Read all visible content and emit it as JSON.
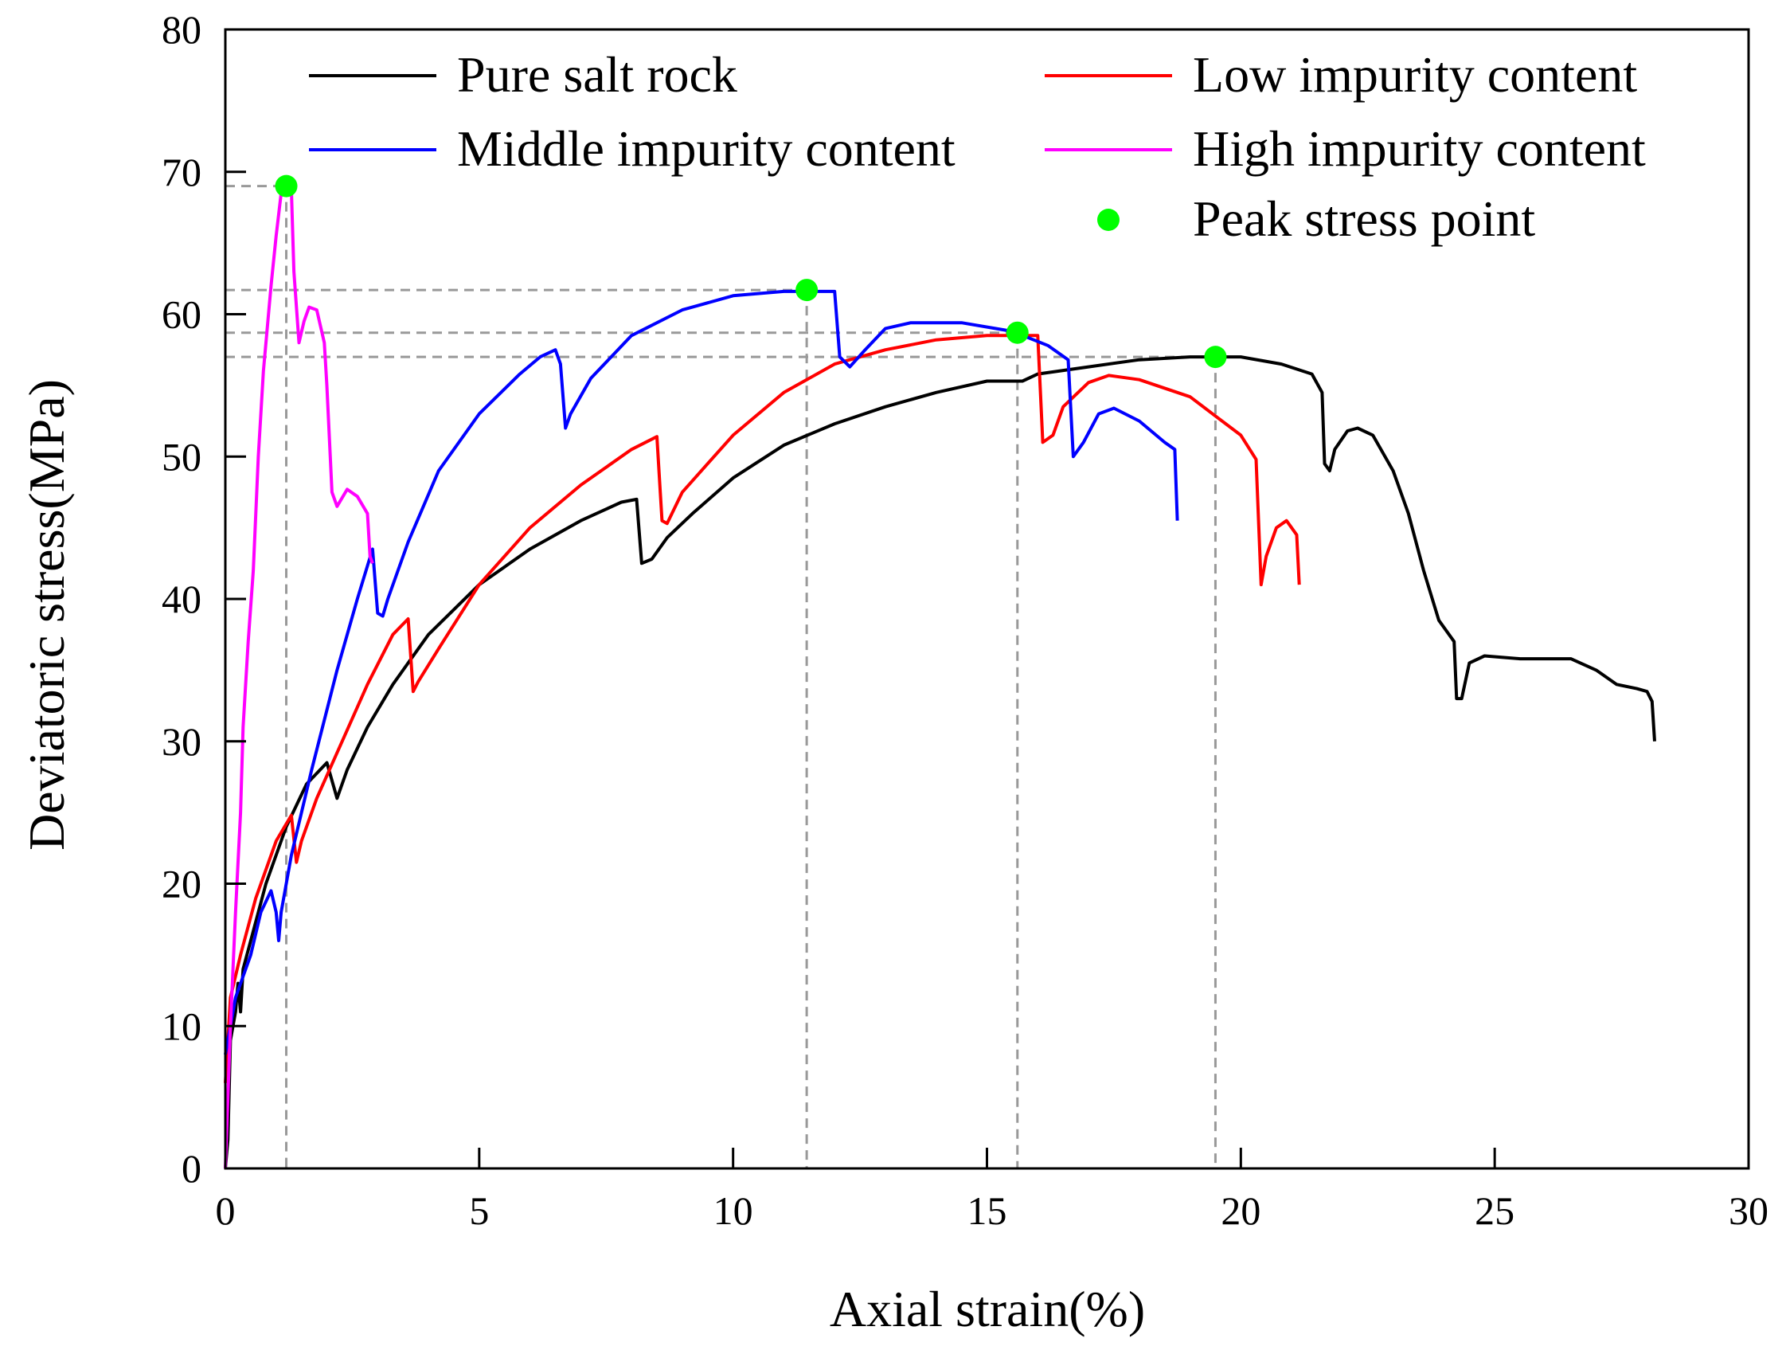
{
  "chart_data": {
    "type": "line",
    "title": "",
    "xlabel": "Axial strain(%)",
    "ylabel": "Deviatoric stress(MPa)",
    "xlim": [
      0,
      30
    ],
    "ylim": [
      0,
      80
    ],
    "xticks": [
      0,
      5,
      10,
      15,
      20,
      25,
      30
    ],
    "yticks": [
      0,
      10,
      20,
      30,
      40,
      50,
      60,
      70,
      80
    ],
    "grid": false,
    "legend_position": "top",
    "series": [
      {
        "name": "Pure salt rock",
        "color": "#000000",
        "points": [
          [
            0,
            0
          ],
          [
            0.05,
            2
          ],
          [
            0.1,
            9
          ],
          [
            0.2,
            11
          ],
          [
            0.25,
            13
          ],
          [
            0.3,
            11
          ],
          [
            0.35,
            14
          ],
          [
            0.5,
            16
          ],
          [
            0.8,
            20
          ],
          [
            1.2,
            24
          ],
          [
            1.6,
            27
          ],
          [
            2.0,
            28.5
          ],
          [
            2.2,
            26
          ],
          [
            2.4,
            28
          ],
          [
            2.8,
            31
          ],
          [
            3.3,
            34
          ],
          [
            4.0,
            37.5
          ],
          [
            5.0,
            41
          ],
          [
            6.0,
            43.5
          ],
          [
            7.0,
            45.5
          ],
          [
            7.8,
            46.8
          ],
          [
            8.1,
            47
          ],
          [
            8.2,
            42.5
          ],
          [
            8.4,
            42.8
          ],
          [
            8.7,
            44.3
          ],
          [
            9.2,
            46
          ],
          [
            10,
            48.5
          ],
          [
            11,
            50.8
          ],
          [
            12,
            52.3
          ],
          [
            13,
            53.5
          ],
          [
            14,
            54.5
          ],
          [
            15,
            55.3
          ],
          [
            15.7,
            55.3
          ],
          [
            16,
            55.8
          ],
          [
            17,
            56.3
          ],
          [
            18,
            56.8
          ],
          [
            19,
            57
          ],
          [
            20,
            57
          ],
          [
            20.8,
            56.5
          ],
          [
            21.4,
            55.8
          ],
          [
            21.6,
            54.5
          ],
          [
            21.65,
            49.5
          ],
          [
            21.75,
            49
          ],
          [
            21.85,
            50.5
          ],
          [
            22.1,
            51.8
          ],
          [
            22.3,
            52
          ],
          [
            22.6,
            51.5
          ],
          [
            23,
            49
          ],
          [
            23.3,
            46
          ],
          [
            23.6,
            42
          ],
          [
            23.9,
            38.5
          ],
          [
            24.2,
            37
          ],
          [
            24.25,
            33
          ],
          [
            24.35,
            33
          ],
          [
            24.5,
            35.5
          ],
          [
            24.8,
            36
          ],
          [
            25.5,
            35.8
          ],
          [
            26.5,
            35.8
          ],
          [
            27.0,
            35
          ],
          [
            27.4,
            34
          ],
          [
            27.8,
            33.7
          ],
          [
            28.0,
            33.5
          ],
          [
            28.1,
            32.8
          ],
          [
            28.15,
            30
          ]
        ]
      },
      {
        "name": "Low impurity content",
        "color": "#ff0000",
        "points": [
          [
            0,
            6
          ],
          [
            0.1,
            12
          ],
          [
            0.3,
            15
          ],
          [
            0.6,
            19
          ],
          [
            1.0,
            23
          ],
          [
            1.3,
            24.8
          ],
          [
            1.4,
            21.5
          ],
          [
            1.5,
            23
          ],
          [
            1.8,
            26
          ],
          [
            2.3,
            30
          ],
          [
            2.8,
            34
          ],
          [
            3.3,
            37.5
          ],
          [
            3.6,
            38.6
          ],
          [
            3.7,
            33.5
          ],
          [
            3.8,
            34.2
          ],
          [
            4.2,
            36.5
          ],
          [
            5.0,
            41
          ],
          [
            6.0,
            45
          ],
          [
            7.0,
            48
          ],
          [
            8.0,
            50.5
          ],
          [
            8.5,
            51.4
          ],
          [
            8.6,
            45.5
          ],
          [
            8.7,
            45.3
          ],
          [
            9.0,
            47.5
          ],
          [
            10,
            51.5
          ],
          [
            11,
            54.5
          ],
          [
            12,
            56.5
          ],
          [
            13,
            57.5
          ],
          [
            14,
            58.2
          ],
          [
            15,
            58.5
          ],
          [
            16,
            58.5
          ],
          [
            16.1,
            51
          ],
          [
            16.3,
            51.5
          ],
          [
            16.5,
            53.5
          ],
          [
            17,
            55.2
          ],
          [
            17.4,
            55.7
          ],
          [
            18,
            55.4
          ],
          [
            19,
            54.2
          ],
          [
            20,
            51.5
          ],
          [
            20.3,
            49.8
          ],
          [
            20.4,
            41
          ],
          [
            20.5,
            43
          ],
          [
            20.7,
            45
          ],
          [
            20.9,
            45.5
          ],
          [
            21.1,
            44.5
          ],
          [
            21.15,
            41
          ]
        ]
      },
      {
        "name": "Middle impurity content",
        "color": "#0000ff",
        "points": [
          [
            0,
            8
          ],
          [
            0.2,
            12
          ],
          [
            0.5,
            15
          ],
          [
            0.7,
            18
          ],
          [
            0.9,
            19.5
          ],
          [
            1.0,
            18
          ],
          [
            1.05,
            16
          ],
          [
            1.1,
            18
          ],
          [
            1.3,
            22
          ],
          [
            1.7,
            28
          ],
          [
            2.2,
            35
          ],
          [
            2.6,
            40
          ],
          [
            2.9,
            43.5
          ],
          [
            3.0,
            39
          ],
          [
            3.1,
            38.8
          ],
          [
            3.2,
            40
          ],
          [
            3.6,
            44
          ],
          [
            4.2,
            49
          ],
          [
            5.0,
            53
          ],
          [
            5.8,
            55.8
          ],
          [
            6.2,
            57
          ],
          [
            6.5,
            57.5
          ],
          [
            6.6,
            56.5
          ],
          [
            6.7,
            52
          ],
          [
            6.8,
            53
          ],
          [
            7.2,
            55.5
          ],
          [
            8.0,
            58.5
          ],
          [
            9.0,
            60.3
          ],
          [
            10,
            61.3
          ],
          [
            11,
            61.6
          ],
          [
            12,
            61.6
          ],
          [
            12.1,
            57
          ],
          [
            12.3,
            56.3
          ],
          [
            12.6,
            57.5
          ],
          [
            13,
            59
          ],
          [
            13.5,
            59.4
          ],
          [
            14.5,
            59.4
          ],
          [
            15.5,
            58.8
          ],
          [
            16.2,
            57.8
          ],
          [
            16.6,
            56.8
          ],
          [
            16.7,
            50
          ],
          [
            16.9,
            51
          ],
          [
            17.2,
            53
          ],
          [
            17.5,
            53.4
          ],
          [
            18,
            52.5
          ],
          [
            18.5,
            51
          ],
          [
            18.7,
            50.5
          ],
          [
            18.75,
            45.5
          ]
        ]
      },
      {
        "name": "High impurity content",
        "color": "#ff00ff",
        "points": [
          [
            0,
            0
          ],
          [
            0.1,
            10
          ],
          [
            0.2,
            18
          ],
          [
            0.3,
            25
          ],
          [
            0.35,
            31
          ],
          [
            0.45,
            37
          ],
          [
            0.55,
            42
          ],
          [
            0.65,
            50
          ],
          [
            0.75,
            56
          ],
          [
            0.9,
            62
          ],
          [
            1.0,
            65.5
          ],
          [
            1.1,
            68.5
          ],
          [
            1.2,
            69
          ],
          [
            1.3,
            68.8
          ],
          [
            1.35,
            63
          ],
          [
            1.45,
            58
          ],
          [
            1.55,
            59.5
          ],
          [
            1.65,
            60.5
          ],
          [
            1.8,
            60.3
          ],
          [
            1.95,
            58
          ],
          [
            2.0,
            55
          ],
          [
            2.1,
            47.5
          ],
          [
            2.2,
            46.5
          ],
          [
            2.4,
            47.7
          ],
          [
            2.6,
            47.2
          ],
          [
            2.8,
            46
          ],
          [
            2.85,
            43
          ],
          [
            2.9,
            42.5
          ]
        ]
      }
    ],
    "peak_points": {
      "name": "Peak stress point",
      "color": "#00ff00",
      "points": [
        [
          1.2,
          69.0
        ],
        [
          11.45,
          61.7
        ],
        [
          15.6,
          58.7
        ],
        [
          19.5,
          57.0
        ]
      ]
    }
  }
}
